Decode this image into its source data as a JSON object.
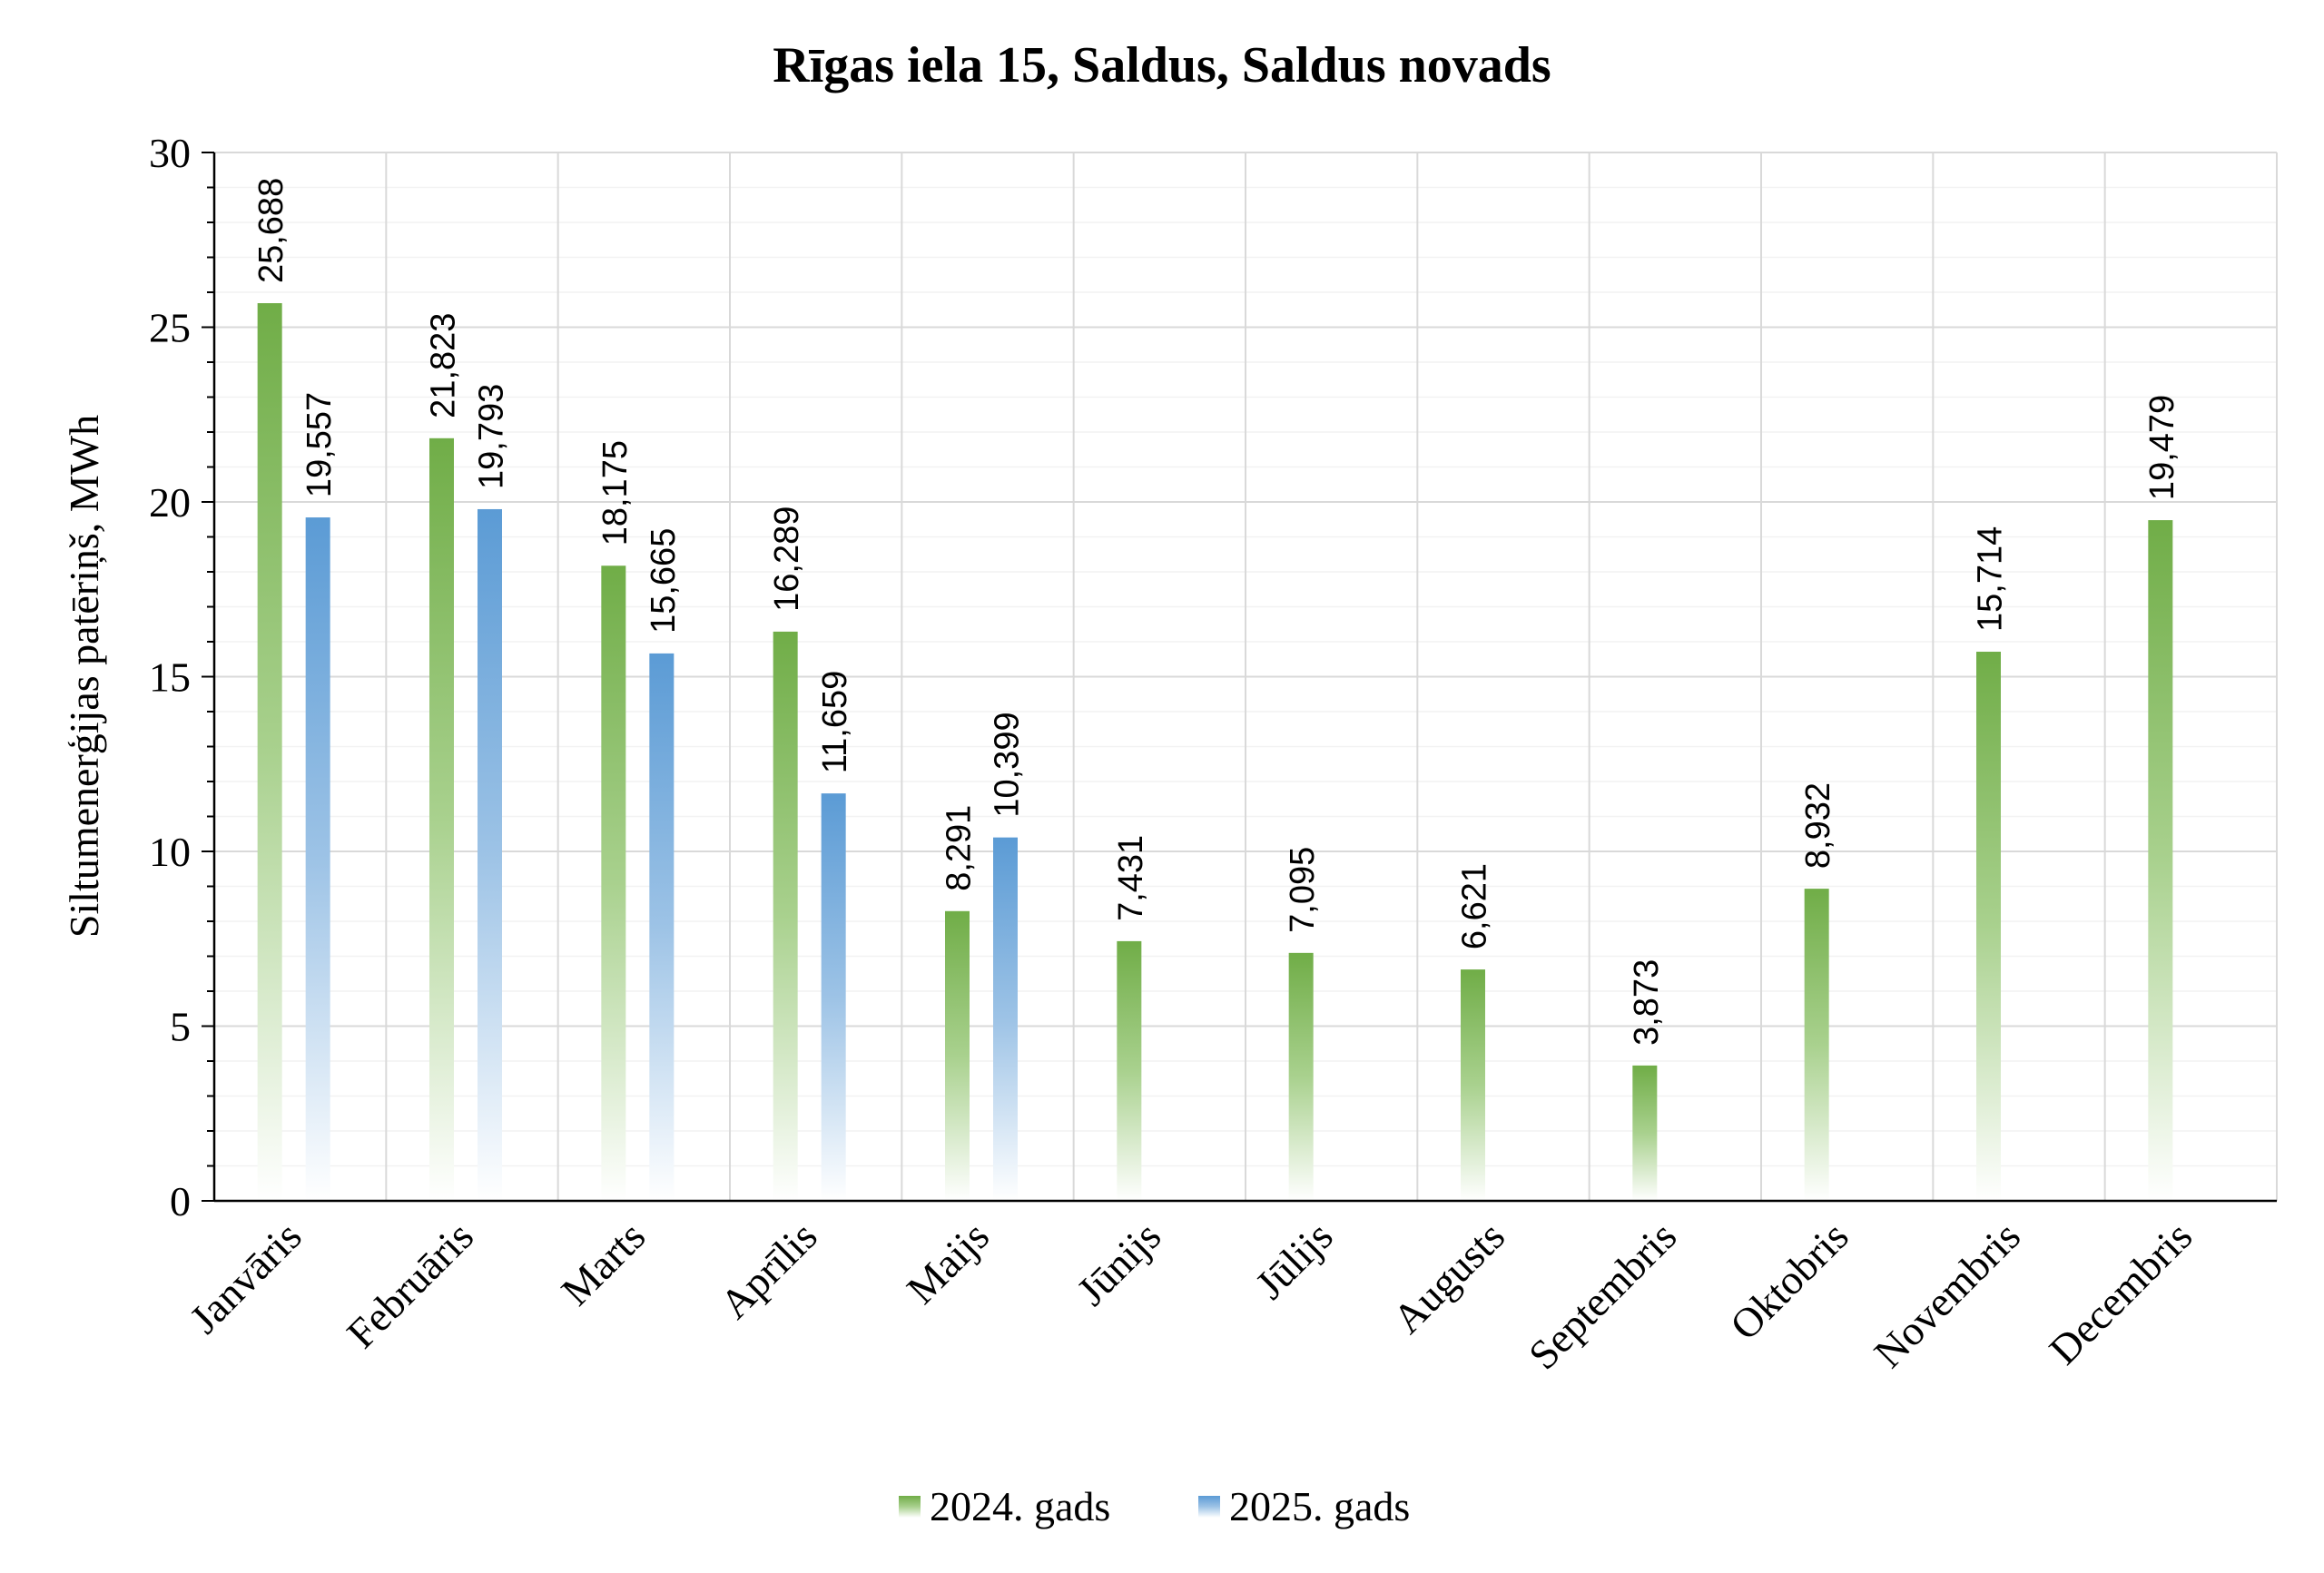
{
  "chart_data": {
    "type": "bar",
    "title": "Rīgas iela 15, Saldus, Saldus novads",
    "ylabel": "Siltumenerģijas patēriņš, MWh",
    "xlabel": "",
    "ylim": [
      0,
      30
    ],
    "yticks": [
      "0",
      "5",
      "10",
      "15",
      "20",
      "25",
      "30"
    ],
    "grid": true,
    "legend_position": "bottom",
    "categories": [
      "Janvāris",
      "Februāris",
      "Marts",
      "Aprīlis",
      "Maijs",
      "Jūnijs",
      "Jūlijs",
      "Augusts",
      "Septembris",
      "Oktobris",
      "Novembris",
      "Decembris"
    ],
    "series": [
      {
        "name": "2024. gads",
        "color": "#70ad47",
        "values": [
          25.688,
          21.823,
          18.175,
          16.289,
          8.291,
          7.431,
          7.095,
          6.621,
          3.873,
          8.932,
          15.714,
          19.479
        ],
        "labels": [
          "25,688",
          "21,823",
          "18,175",
          "16,289",
          "8,291",
          "7,431",
          "7,095",
          "6,621",
          "3,873",
          "8,932",
          "15,714",
          "19,479"
        ]
      },
      {
        "name": "2025. gads",
        "color": "#5b9bd5",
        "values": [
          19.557,
          19.793,
          15.665,
          11.659,
          10.399,
          null,
          null,
          null,
          null,
          null,
          null,
          null
        ],
        "labels": [
          "19,557",
          "19,793",
          "15,665",
          "11,659",
          "10,399",
          null,
          null,
          null,
          null,
          null,
          null,
          null
        ]
      }
    ]
  }
}
